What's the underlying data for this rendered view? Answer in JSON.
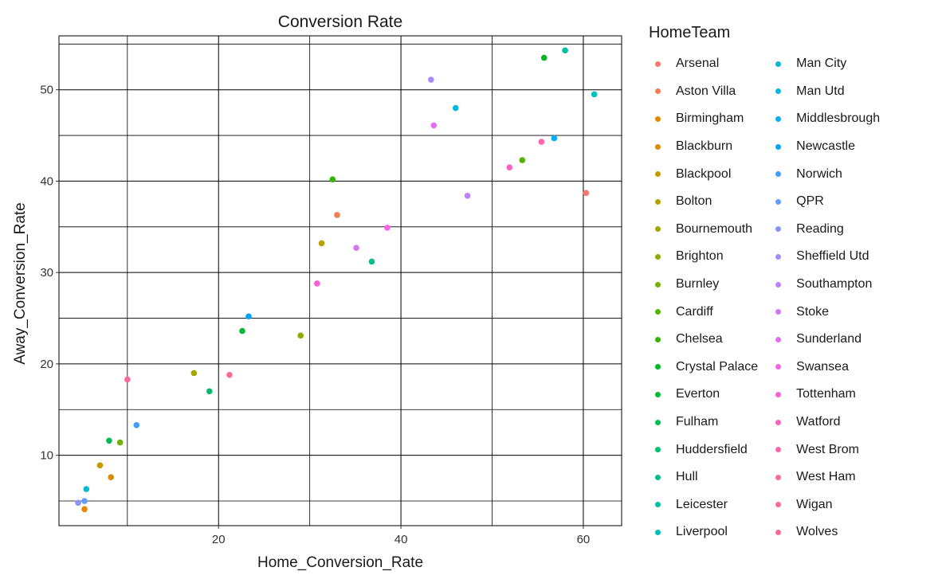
{
  "chart_data": {
    "type": "scatter",
    "title": "Conversion Rate",
    "xlabel": "Home_Conversion_Rate",
    "ylabel": "Away_Conversion_Rate",
    "xlim": [
      2.5,
      64.2
    ],
    "ylim": [
      2.3,
      55.9
    ],
    "xticks": [
      20,
      40,
      60
    ],
    "yticks": [
      10,
      20,
      30,
      40,
      50
    ],
    "grid": true,
    "legend_title": "HomeTeam",
    "legend_position": "right",
    "series": [
      {
        "name": "Arsenal",
        "color": "#F8766D",
        "points": [
          [
            60.3,
            38.7
          ]
        ]
      },
      {
        "name": "Aston Villa",
        "color": "#F17E4F",
        "points": [
          [
            33.0,
            36.3
          ]
        ]
      },
      {
        "name": "Birmingham",
        "color": "#E58700",
        "points": [
          [
            5.3,
            4.1
          ]
        ]
      },
      {
        "name": "Blackburn",
        "color": "#D68D00",
        "points": [
          [
            8.2,
            7.6
          ]
        ]
      },
      {
        "name": "Blackpool",
        "color": "#C99800",
        "points": [
          [
            7.0,
            8.9
          ]
        ]
      },
      {
        "name": "Bolton",
        "color": "#B79F00",
        "points": [
          [
            31.3,
            33.2
          ]
        ]
      },
      {
        "name": "Bournemouth",
        "color": "#A3A500",
        "points": [
          [
            17.3,
            19.0
          ]
        ]
      },
      {
        "name": "Brighton",
        "color": "#8EAB00",
        "points": [
          [
            29.0,
            23.1
          ]
        ]
      },
      {
        "name": "Burnley",
        "color": "#73B000",
        "points": [
          [
            9.2,
            11.4
          ]
        ]
      },
      {
        "name": "Cardiff",
        "color": "#53B400",
        "points": [
          [
            53.3,
            42.3
          ]
        ]
      },
      {
        "name": "Chelsea",
        "color": "#2FB600",
        "points": [
          [
            32.5,
            40.2
          ]
        ]
      },
      {
        "name": "Crystal Palace",
        "color": "#00B81F",
        "points": [
          [
            55.7,
            53.5
          ]
        ]
      },
      {
        "name": "Everton",
        "color": "#00BA38",
        "points": [
          [
            22.6,
            23.6
          ]
        ]
      },
      {
        "name": "Fulham",
        "color": "#00BC54",
        "points": [
          [
            8.0,
            11.6
          ]
        ]
      },
      {
        "name": "Huddersfield",
        "color": "#00BE70",
        "points": [
          [
            19.0,
            17.0
          ]
        ]
      },
      {
        "name": "Hull",
        "color": "#00BF8B",
        "points": [
          [
            36.8,
            31.2
          ]
        ]
      },
      {
        "name": "Leicester",
        "color": "#00C0A4",
        "points": [
          [
            58.0,
            54.3
          ]
        ]
      },
      {
        "name": "Liverpool",
        "color": "#00BFBC",
        "points": [
          [
            61.2,
            49.5
          ]
        ]
      },
      {
        "name": "Man City",
        "color": "#00BDD2",
        "points": [
          [
            5.5,
            6.3
          ]
        ]
      },
      {
        "name": "Man Utd",
        "color": "#00B9E3",
        "points": [
          [
            46.0,
            48.0
          ]
        ]
      },
      {
        "name": "Middlesbrough",
        "color": "#00B0F6",
        "points": [
          [
            56.8,
            44.7
          ]
        ]
      },
      {
        "name": "Newcastle",
        "color": "#00A5FF",
        "points": [
          [
            23.3,
            25.2
          ]
        ]
      },
      {
        "name": "Norwich",
        "color": "#3E9FFF",
        "points": [
          [
            11.0,
            13.3
          ]
        ]
      },
      {
        "name": "QPR",
        "color": "#619CFF",
        "points": [
          [
            5.3,
            5.0
          ]
        ]
      },
      {
        "name": "Reading",
        "color": "#8794FF",
        "points": [
          [
            4.6,
            4.8
          ]
        ]
      },
      {
        "name": "Sheffield Utd",
        "color": "#A58AFF",
        "points": [
          [
            43.3,
            51.1
          ]
        ]
      },
      {
        "name": "Southampton",
        "color": "#BF80FF",
        "points": [
          [
            47.3,
            38.4
          ]
        ]
      },
      {
        "name": "Stoke",
        "color": "#D277F7",
        "points": [
          [
            35.1,
            32.7
          ]
        ]
      },
      {
        "name": "Sunderland",
        "color": "#E76BF3",
        "points": [
          [
            43.6,
            46.1
          ]
        ]
      },
      {
        "name": "Swansea",
        "color": "#F564E3",
        "points": [
          [
            38.5,
            34.9
          ]
        ]
      },
      {
        "name": "Tottenham",
        "color": "#FA62D2",
        "points": [
          [
            30.8,
            28.8
          ]
        ]
      },
      {
        "name": "Watford",
        "color": "#FE61C2",
        "points": [
          [
            51.9,
            41.5
          ]
        ]
      },
      {
        "name": "West Brom",
        "color": "#FF64B0",
        "points": [
          [
            55.4,
            44.3
          ]
        ]
      },
      {
        "name": "West Ham",
        "color": "#FF699C",
        "points": [
          [
            10.0,
            18.3
          ]
        ]
      },
      {
        "name": "Wigan",
        "color": "#FF6C91",
        "points": [
          [
            21.2,
            18.8
          ]
        ]
      },
      {
        "name": "Wolves",
        "color": "#FF6C91",
        "points": []
      }
    ]
  }
}
